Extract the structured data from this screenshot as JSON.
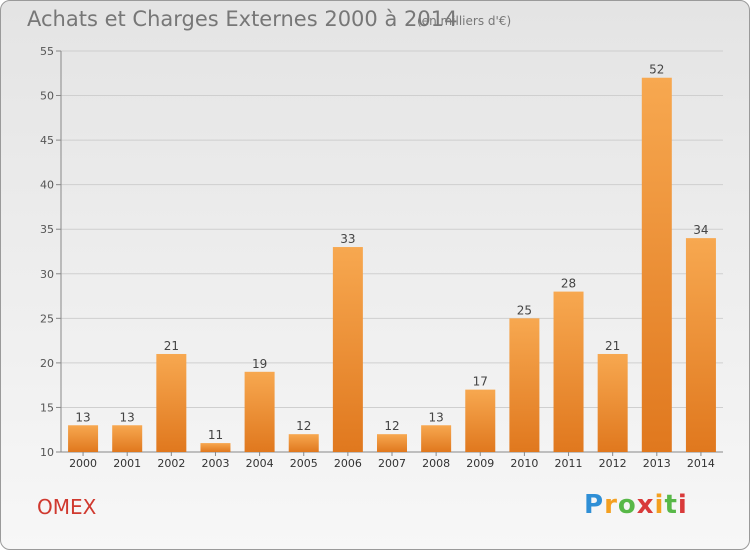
{
  "header": {
    "title": "Achats et Charges Externes 2000 à 2014",
    "unit": "(en milliers d'€)"
  },
  "footer": {
    "commune": "OMEX",
    "logo_text": "Proxiti"
  },
  "colors": {
    "bar_light": "#f7a850",
    "bar_dark": "#e0781e",
    "grid": "#cfcfcf",
    "commune": "#d0392f"
  },
  "chart_data": {
    "type": "bar",
    "title": "Achats et Charges Externes 2000 à 2014",
    "subtitle": "(en milliers d'€)",
    "xlabel": "",
    "ylabel": "",
    "categories": [
      "2000",
      "2001",
      "2002",
      "2003",
      "2004",
      "2005",
      "2006",
      "2007",
      "2008",
      "2009",
      "2010",
      "2011",
      "2012",
      "2013",
      "2014"
    ],
    "values": [
      13,
      13,
      21,
      11,
      19,
      12,
      33,
      12,
      13,
      17,
      25,
      28,
      21,
      52,
      34
    ],
    "ylim": [
      10,
      55
    ],
    "yticks": [
      10,
      15,
      20,
      25,
      30,
      35,
      40,
      45,
      50,
      55
    ],
    "grid": true,
    "data_labels": true
  }
}
